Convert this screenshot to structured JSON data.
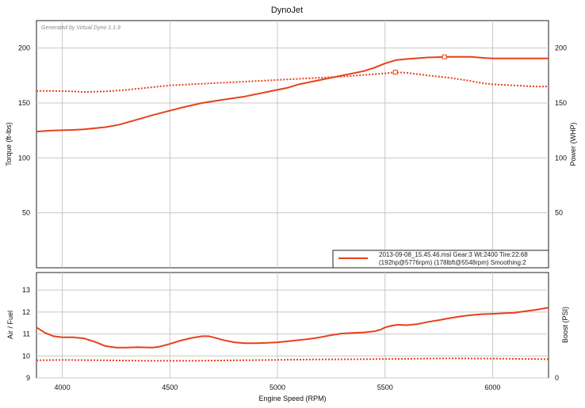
{
  "chart_data": [
    {
      "type": "line",
      "panel": "top",
      "title": "DynoJet",
      "watermark": "Generated by Virtual Dyno 1.1.9",
      "xlabel": "Engine Speed (RPM)",
      "ylabel": "Torque (ft-lbs)",
      "ylabel_right": "Power (WHP)",
      "xlim": [
        3880,
        6260
      ],
      "ylim": [
        0,
        225
      ],
      "xticks": [
        "4000",
        "4500",
        "5000",
        "5500",
        "6000"
      ],
      "yticks": [
        "50",
        "100",
        "150",
        "200"
      ],
      "yticks_right": [
        "50",
        "100",
        "150",
        "200"
      ],
      "grid": true,
      "legend_position": "bottom-right",
      "legend_lines": [
        "2013-09-08_15.45.46.msl Gear:3 Wt:2400 Tire:22.68",
        "(192hp@5776rpm) (178lbft@5548rpm) Smoothing:2"
      ],
      "series": [
        {
          "style": "solid",
          "color": "#e8401a",
          "marker": {
            "x": 5776,
            "y": 192
          },
          "x": [
            3880,
            3950,
            4050,
            4100,
            4150,
            4200,
            4260,
            4350,
            4420,
            4500,
            4560,
            4650,
            4750,
            4850,
            4950,
            5050,
            5100,
            5200,
            5300,
            5400,
            5450,
            5500,
            5550,
            5600,
            5700,
            5800,
            5900,
            5960,
            6000,
            6100,
            6200,
            6260
          ],
          "values": [
            124,
            125,
            125.5,
            126,
            127,
            128,
            130,
            135,
            139,
            143,
            146,
            150,
            153,
            156,
            160,
            164,
            167,
            171,
            175,
            179,
            182,
            186,
            189,
            190,
            191.5,
            192,
            192,
            191,
            190.5,
            190.5,
            190.5,
            190.5
          ]
        },
        {
          "style": "dotted",
          "color": "#e8401a",
          "marker": {
            "x": 5548,
            "y": 178
          },
          "x": [
            3880,
            3950,
            4050,
            4100,
            4200,
            4300,
            4400,
            4500,
            4600,
            4700,
            4800,
            4900,
            5000,
            5100,
            5200,
            5300,
            5400,
            5500,
            5548,
            5600,
            5700,
            5800,
            5900,
            5950,
            6000,
            6100,
            6200,
            6260
          ],
          "values": [
            161,
            161,
            160.5,
            160,
            160.5,
            162,
            164,
            166,
            167,
            168,
            169,
            170,
            171,
            172,
            173,
            174,
            175.5,
            177,
            178,
            177.5,
            175,
            173,
            170,
            168,
            167,
            166,
            165,
            165
          ]
        }
      ]
    },
    {
      "type": "line",
      "panel": "bottom",
      "xlabel": "Engine Speed (RPM)",
      "ylabel": "Air / Fuel",
      "ylabel_right": "Boost (PSI)",
      "xlim": [
        3880,
        6260
      ],
      "ylim": [
        9,
        13.8
      ],
      "xticks": [
        "4000",
        "4500",
        "5000",
        "5500",
        "6000"
      ],
      "yticks": [
        "9",
        "10",
        "11",
        "12",
        "13"
      ],
      "yticks_right": [
        "0"
      ],
      "grid": true,
      "series": [
        {
          "style": "solid",
          "color": "#e8401a",
          "x": [
            3880,
            3920,
            3960,
            4000,
            4050,
            4100,
            4150,
            4200,
            4250,
            4300,
            4350,
            4420,
            4450,
            4500,
            4550,
            4600,
            4650,
            4680,
            4700,
            4750,
            4800,
            4850,
            4900,
            4950,
            5000,
            5050,
            5100,
            5150,
            5200,
            5250,
            5300,
            5350,
            5400,
            5450,
            5480,
            5500,
            5530,
            5560,
            5600,
            5650,
            5700,
            5750,
            5800,
            5850,
            5900,
            5950,
            6000,
            6100,
            6200,
            6260
          ],
          "values": [
            11.3,
            11.05,
            10.9,
            10.85,
            10.85,
            10.8,
            10.65,
            10.45,
            10.38,
            10.38,
            10.4,
            10.38,
            10.42,
            10.55,
            10.7,
            10.82,
            10.9,
            10.9,
            10.85,
            10.72,
            10.62,
            10.58,
            10.58,
            10.6,
            10.62,
            10.67,
            10.72,
            10.78,
            10.85,
            10.95,
            11.02,
            11.05,
            11.07,
            11.12,
            11.2,
            11.3,
            11.38,
            11.42,
            11.4,
            11.45,
            11.55,
            11.63,
            11.72,
            11.8,
            11.86,
            11.9,
            11.92,
            11.97,
            12.1,
            12.2
          ]
        },
        {
          "style": "dotted",
          "color": "#e8401a",
          "x": [
            3880,
            4000,
            4200,
            4400,
            4600,
            4800,
            5000,
            5200,
            5400,
            5600,
            5800,
            6000,
            6200,
            6260
          ],
          "values": [
            9.8,
            9.82,
            9.8,
            9.78,
            9.78,
            9.8,
            9.82,
            9.84,
            9.85,
            9.87,
            9.89,
            9.88,
            9.86,
            9.85
          ]
        }
      ]
    }
  ]
}
